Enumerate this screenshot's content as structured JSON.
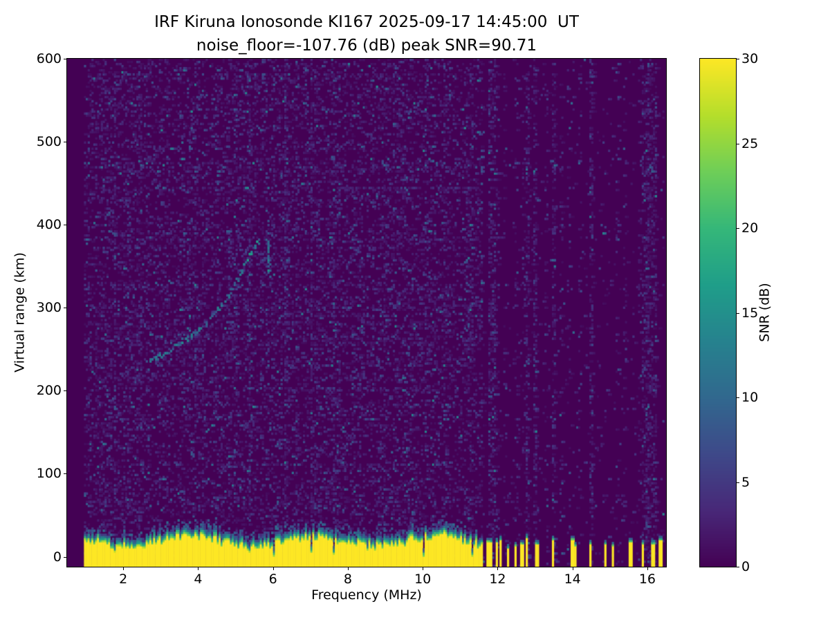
{
  "chart_data": {
    "type": "heatmap",
    "title": "IRF Kiruna Ionosonde KI167 2025-09-17 14:45:00  UT",
    "subtitle": "noise_floor=-107.76 (dB) peak SNR=90.71",
    "xlabel": "Frequency (MHz)",
    "ylabel": "Virtual range (km)",
    "colorbar_label": "SNR (dB)",
    "xlim": [
      0.5,
      16.5
    ],
    "ylim": [
      -12,
      600
    ],
    "clim": [
      0,
      30
    ],
    "xticks": [
      2,
      4,
      6,
      8,
      10,
      12,
      14,
      16
    ],
    "yticks": [
      0,
      100,
      200,
      300,
      400,
      500,
      600
    ],
    "colorbar_ticks": [
      0,
      5,
      10,
      15,
      20,
      25,
      30
    ],
    "colormap": "viridis",
    "legend_position": "right-colorbar",
    "grid": false,
    "viridis_stops": [
      "#440154",
      "#482878",
      "#3e4989",
      "#31688e",
      "#26828e",
      "#1f9e89",
      "#35b779",
      "#6ece58",
      "#b5de2b",
      "#fde725"
    ],
    "sweep": {
      "f_start": 0.95,
      "f_stop": 16.45,
      "n_freq": 310,
      "n_range": 246
    },
    "ground_band": {
      "f_max_continuous": 11.62,
      "mean_top_km": 26,
      "value_db": 30
    },
    "elevated_noise_freqs": [
      6.35
    ],
    "rfi_spike_freqs": [
      11.7,
      11.82,
      11.95,
      12.08,
      12.25,
      12.45,
      12.62,
      12.78,
      13.0,
      13.45,
      13.95,
      14.08,
      14.45,
      14.85,
      15.05,
      15.5,
      15.85,
      16.1,
      16.32
    ],
    "echo_trace": {
      "points": [
        [
          2.75,
          236
        ],
        [
          2.95,
          241
        ],
        [
          3.15,
          246
        ],
        [
          3.35,
          252
        ],
        [
          3.55,
          258
        ],
        [
          3.75,
          264
        ],
        [
          3.95,
          271
        ],
        [
          4.15,
          279
        ],
        [
          4.35,
          288
        ],
        [
          4.55,
          298
        ],
        [
          4.75,
          310
        ],
        [
          4.9,
          322
        ],
        [
          5.05,
          334
        ],
        [
          5.2,
          347
        ],
        [
          5.35,
          360
        ],
        [
          5.5,
          372
        ],
        [
          5.62,
          381
        ]
      ],
      "branch": [
        [
          5.88,
          336
        ],
        [
          5.88,
          382
        ]
      ],
      "snr_db_range": [
        7,
        18
      ]
    },
    "noise": {
      "floor_db": -107.76,
      "peak_snr_db": 90.71,
      "render_seed": 20250917
    }
  }
}
